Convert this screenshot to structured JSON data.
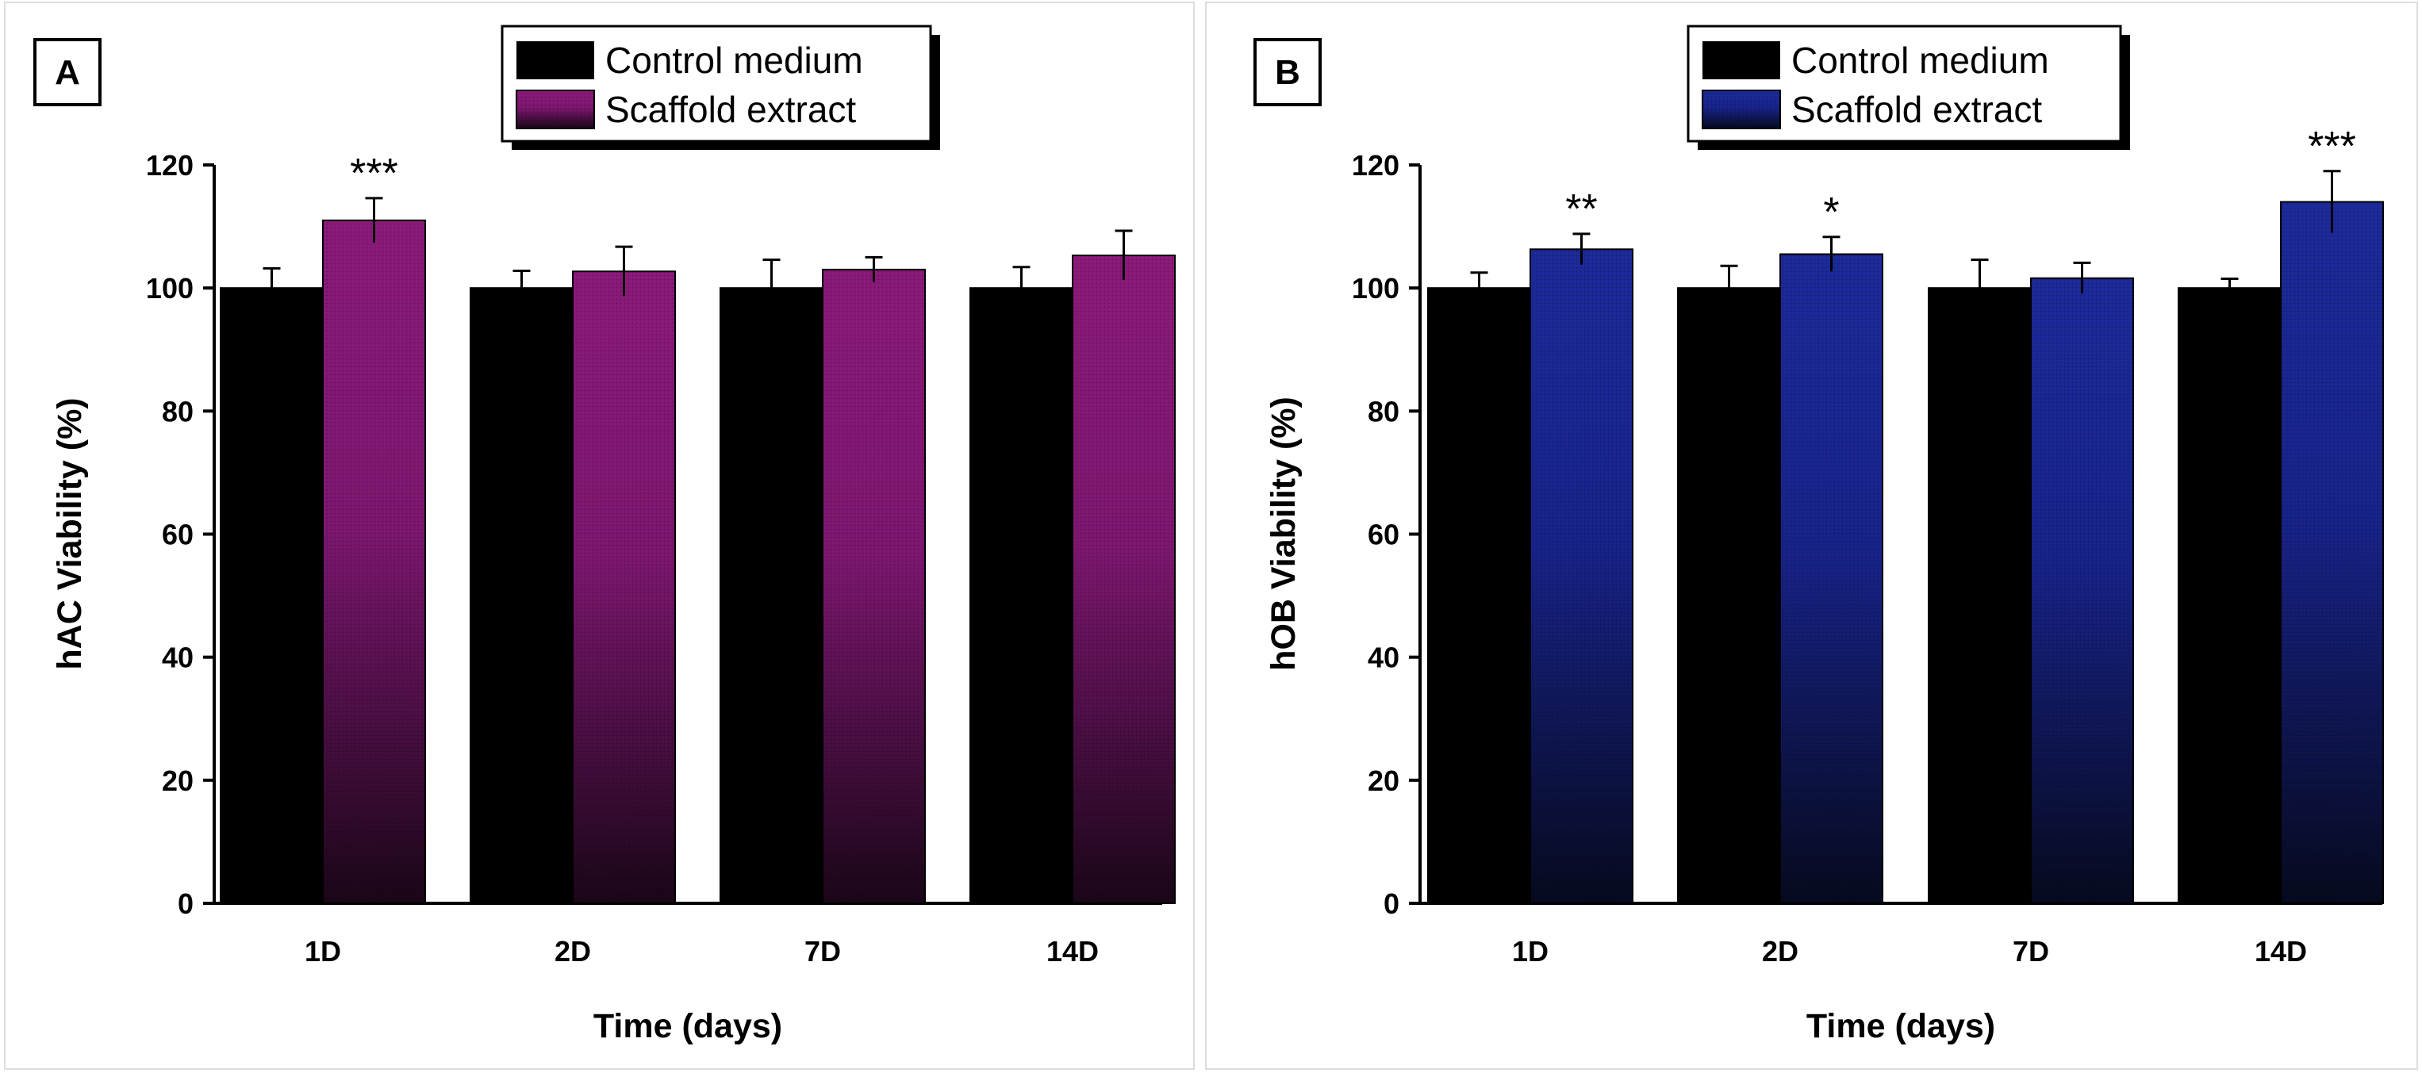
{
  "chart_data": [
    {
      "type": "bar",
      "panel_label": "A",
      "categories": [
        "1D",
        "2D",
        "7D",
        "14D"
      ],
      "series": [
        {
          "name": "Control medium",
          "color": "#000000",
          "values": [
            100,
            100,
            100,
            100
          ],
          "errors": [
            3.2,
            2.8,
            4.6,
            3.4
          ]
        },
        {
          "name": "Scaffold extract",
          "color": "#8b1a7a",
          "values": [
            111,
            102.7,
            103,
            105.3
          ],
          "errors": [
            3.6,
            4.0,
            2.0,
            4.0
          ]
        }
      ],
      "significance": [
        "***",
        "",
        "",
        ""
      ],
      "xlabel": "Time (days)",
      "ylabel": "hAC Viability (%)",
      "ylim": [
        0,
        120
      ],
      "yticks": [
        "0",
        "20",
        "40",
        "60",
        "80",
        "100",
        "120"
      ],
      "legend_position": "top-center"
    },
    {
      "type": "bar",
      "panel_label": "B",
      "categories": [
        "1D",
        "2D",
        "7D",
        "14D"
      ],
      "series": [
        {
          "name": "Control medium",
          "color": "#000000",
          "values": [
            100,
            100,
            100,
            100
          ],
          "errors": [
            2.5,
            3.6,
            4.6,
            1.5
          ]
        },
        {
          "name": "Scaffold extract",
          "color": "#1c2a9a",
          "values": [
            106.3,
            105.5,
            101.6,
            114
          ],
          "errors": [
            2.5,
            2.8,
            2.5,
            5.0
          ]
        }
      ],
      "significance": [
        "**",
        "*",
        "",
        "***"
      ],
      "xlabel": "Time (days)",
      "ylabel": "hOB Viability (%)",
      "ylim": [
        0,
        120
      ],
      "yticks": [
        "0",
        "20",
        "40",
        "60",
        "80",
        "100",
        "120"
      ],
      "legend_position": "top-center"
    }
  ]
}
